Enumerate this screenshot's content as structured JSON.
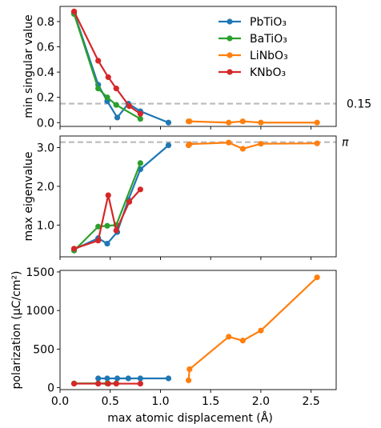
{
  "colors": {
    "PbTiO3": "#1f77b4",
    "BaTiO3": "#2ca02c",
    "LiNbO3": "#ff7f0e",
    "KNbO3": "#d62728",
    "reference_line": "#bbbbbb"
  },
  "chart_data": [
    {
      "type": "line",
      "ylabel": "min singular value",
      "xlim": [
        0.0,
        2.75
      ],
      "ylim": [
        -0.03,
        0.92
      ],
      "yticks": [
        "0.0",
        "0.2",
        "0.4",
        "0.6",
        "0.8"
      ],
      "reference_line": {
        "y": 0.15,
        "label": "0.15"
      },
      "legend": {
        "placement": "top-right",
        "entries": [
          "PbTiO₃",
          "BaTiO₃",
          "LiNbO₃",
          "KNbO₃"
        ]
      },
      "series": [
        {
          "name": "PbTiO₃",
          "color_key": "PbTiO3",
          "x": [
            0.14,
            0.38,
            0.47,
            0.57,
            0.68,
            0.8,
            1.08
          ],
          "y": [
            0.87,
            0.3,
            0.17,
            0.04,
            0.15,
            0.09,
            0.0
          ]
        },
        {
          "name": "BaTiO₃",
          "color_key": "BaTiO3",
          "x": [
            0.14,
            0.38,
            0.47,
            0.56,
            0.8
          ],
          "y": [
            0.86,
            0.27,
            0.2,
            0.14,
            0.03
          ]
        },
        {
          "name": "KNbO₃",
          "color_key": "KNbO3",
          "x": [
            0.14,
            0.38,
            0.48,
            0.56,
            0.69,
            0.8
          ],
          "y": [
            0.88,
            0.49,
            0.36,
            0.27,
            0.13,
            0.07
          ]
        },
        {
          "name": "LiNbO₃",
          "color_key": "LiNbO3",
          "x": [
            1.28,
            1.29,
            1.68,
            1.82,
            2.0,
            2.56
          ],
          "y": [
            0.01,
            0.01,
            0.0,
            0.01,
            0.0,
            0.0
          ]
        }
      ]
    },
    {
      "type": "line",
      "ylabel": "max eigenvalue",
      "xlim": [
        0.0,
        2.75
      ],
      "ylim": [
        0.18,
        3.3
      ],
      "yticks": [
        "1.0",
        "2.0",
        "3.0"
      ],
      "reference_line": {
        "y": 3.14159,
        "label": "π"
      },
      "series": [
        {
          "name": "PbTiO₃",
          "color_key": "PbTiO3",
          "x": [
            0.14,
            0.38,
            0.47,
            0.57,
            0.68,
            0.8,
            1.08
          ],
          "y": [
            0.37,
            0.66,
            0.52,
            0.82,
            1.65,
            2.44,
            3.06
          ]
        },
        {
          "name": "BaTiO₃",
          "color_key": "BaTiO3",
          "x": [
            0.14,
            0.38,
            0.47,
            0.56,
            0.8
          ],
          "y": [
            0.34,
            0.96,
            0.98,
            1.0,
            2.6
          ]
        },
        {
          "name": "KNbO₃",
          "color_key": "KNbO3",
          "x": [
            0.14,
            0.38,
            0.48,
            0.56,
            0.69,
            0.8
          ],
          "y": [
            0.39,
            0.6,
            1.77,
            0.86,
            1.6,
            1.92
          ]
        },
        {
          "name": "LiNbO₃",
          "color_key": "LiNbO3",
          "x": [
            1.28,
            1.29,
            1.68,
            1.82,
            2.0,
            2.56
          ],
          "y": [
            3.06,
            3.09,
            3.13,
            2.97,
            3.1,
            3.11
          ]
        }
      ]
    },
    {
      "type": "line",
      "ylabel": "polarization (μC/cm²)",
      "xlabel": "max atomic displacement (Å)",
      "xlim": [
        0.0,
        2.75
      ],
      "ylim": [
        -25,
        1520
      ],
      "xticks": [
        "0.0",
        "0.5",
        "1.0",
        "1.5",
        "2.0",
        "2.5"
      ],
      "yticks": [
        "0",
        "500",
        "1000",
        "1500"
      ],
      "series": [
        {
          "name": "PbTiO₃",
          "color_key": "PbTiO3",
          "x": [
            0.38,
            0.47,
            0.57,
            0.68,
            0.8,
            1.08
          ],
          "y": [
            120,
            120,
            120,
            120,
            120,
            120
          ]
        },
        {
          "name": "BaTiO₃",
          "color_key": "BaTiO3",
          "x": [
            0.14,
            0.38,
            0.47,
            0.56
          ],
          "y": [
            55,
            55,
            55,
            55
          ]
        },
        {
          "name": "KNbO₃",
          "color_key": "KNbO3",
          "x": [
            0.14,
            0.38,
            0.48,
            0.56,
            0.8
          ],
          "y": [
            52,
            52,
            52,
            52,
            52
          ]
        },
        {
          "name": "LiNbO₃",
          "color_key": "LiNbO3",
          "x": [
            1.28,
            1.29,
            1.68,
            1.82,
            2.0,
            2.56
          ],
          "y": [
            95,
            240,
            660,
            610,
            740,
            1430
          ]
        }
      ]
    }
  ]
}
